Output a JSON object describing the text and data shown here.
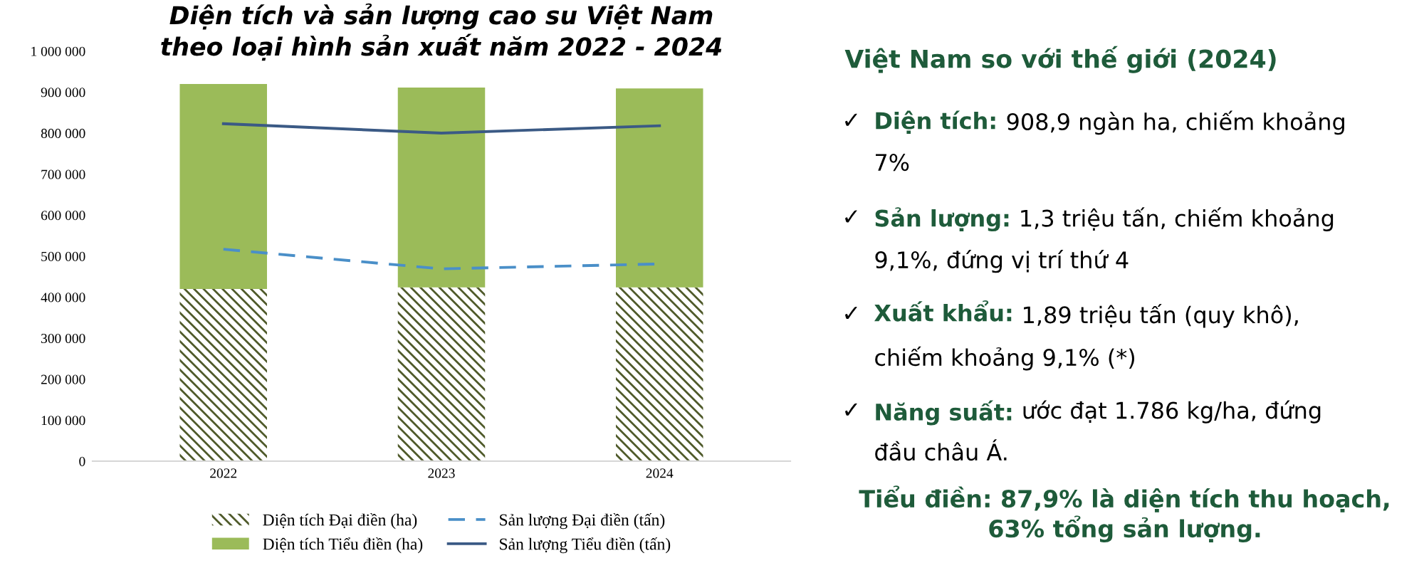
{
  "chart_data": [
    {
      "type": "bar",
      "stacked": true,
      "title": "Diện tích và sản lượng cao su Việt Nam\ntheo loại hình sản xuất năm 2022 - 2024",
      "categories": [
        "2022",
        "2023",
        "2024"
      ],
      "series": [
        {
          "name": "Diện tích Đại điền (ha)",
          "type": "bar",
          "color": "#4f5a2a",
          "values": [
            420000,
            424000,
            424000
          ]
        },
        {
          "name": "Diện tích Tiểu điền (ha)",
          "type": "bar",
          "color": "#9bbb59",
          "values": [
            500000,
            487000,
            485000
          ]
        },
        {
          "name": "Sản lượng Đại điền (tấn)",
          "type": "line",
          "line_style": "dashed",
          "color": "#4a8fc8",
          "values": [
            517000,
            469000,
            481000
          ]
        },
        {
          "name": "Sản lượng Tiểu điền (tấn)",
          "type": "line",
          "line_style": "solid",
          "color": "#3b5a85",
          "values": [
            823000,
            800000,
            818000
          ]
        }
      ],
      "ylim": [
        0,
        1000000
      ],
      "yticks": [
        0,
        {
          "value": 100000,
          "label": "100 000"
        },
        {
          "value": 200000,
          "label": "200 000"
        },
        {
          "value": 300000,
          "label": "300 000"
        },
        {
          "value": 400000,
          "label": "400 000"
        },
        {
          "value": 500000,
          "label": "500 000"
        },
        {
          "value": 600000,
          "label": "600 000"
        },
        {
          "value": 700000,
          "label": "700 000"
        },
        {
          "value": 800000,
          "label": "800 000"
        },
        {
          "value": 900000,
          "label": "900 000"
        },
        {
          "value": 1000000,
          "label": "1 000 000"
        }
      ],
      "grid": false,
      "legend": "bottom"
    },
    {
      "type": "other",
      "title": "Việt Nam so với thế giới (2024)",
      "annotations": [
        "✓ Diện tích: 908,9 ngàn ha, chiếm khoảng\n7%",
        "✓ Sản lượng: 1,3 triệu tấn, chiếm khoảng\n9,1%, đứng vị trí thứ 4",
        "✓ Xuất khẩu: 1,89 triệu tấn (quy khô),\nchiếm khoảng 9,1% (*)",
        "✓ Năng suất: ước đạt 1.786 kg/ha, đứng\nđầu châu Á.",
        "Tiểu điền: 87,9% là diện tích thu hoạch,\n63% tổng sản lượng."
      ]
    }
  ]
}
